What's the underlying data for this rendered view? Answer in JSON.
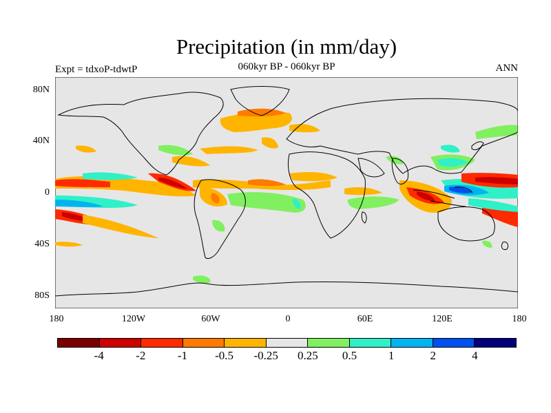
{
  "header": {
    "title": "Precipitation (in mm/day)",
    "subtitle": "060kyr BP - 060kyr BP",
    "left_label": "Expt = tdxoP-tdwtP",
    "right_label": "ANN"
  },
  "map": {
    "background": "#e6e6e6",
    "coastline_color": "#000000",
    "y_ticks": [
      "80N",
      "40N",
      "0",
      "40S",
      "80S"
    ],
    "x_ticks": [
      "180",
      "120W",
      "60W",
      "0",
      "60E",
      "120E",
      "180"
    ]
  },
  "colorbar": {
    "colors": [
      "#7a0000",
      "#cc0000",
      "#ff2a00",
      "#ff7a00",
      "#ffb400",
      "#e6e6e6",
      "#80f060",
      "#30f0c8",
      "#00b4f0",
      "#0050f0",
      "#00007a"
    ],
    "labels": [
      "-4",
      "-2",
      "-1",
      "-0.5",
      "-0.25",
      "0.25",
      "0.5",
      "1",
      "2",
      "4"
    ]
  }
}
